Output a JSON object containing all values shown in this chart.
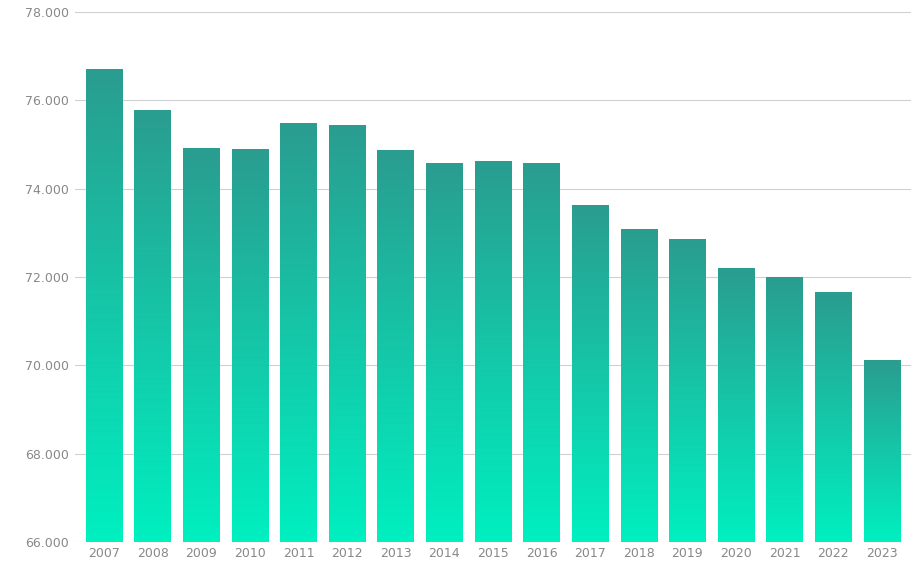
{
  "years": [
    2007,
    2008,
    2009,
    2010,
    2011,
    2012,
    2013,
    2014,
    2015,
    2016,
    2017,
    2018,
    2019,
    2020,
    2021,
    2022,
    2023
  ],
  "values": [
    76700,
    75780,
    74900,
    74880,
    75480,
    75430,
    74870,
    74560,
    74610,
    74560,
    73620,
    73080,
    72860,
    72200,
    71980,
    71660,
    70120
  ],
  "ylim": [
    66000,
    78000
  ],
  "yticks": [
    66000,
    68000,
    70000,
    72000,
    74000,
    76000,
    78000
  ],
  "ytick_labels": [
    "66.000",
    "68.000",
    "70.000",
    "72.000",
    "74.000",
    "76.000",
    "78.000"
  ],
  "color_bottom": "#00f0c0",
  "color_top": "#2a9d8f",
  "background_color": "#ffffff",
  "grid_color": "#d0d0d0",
  "bar_width": 0.75,
  "tick_color": "#888888",
  "tick_fontsize": 9
}
